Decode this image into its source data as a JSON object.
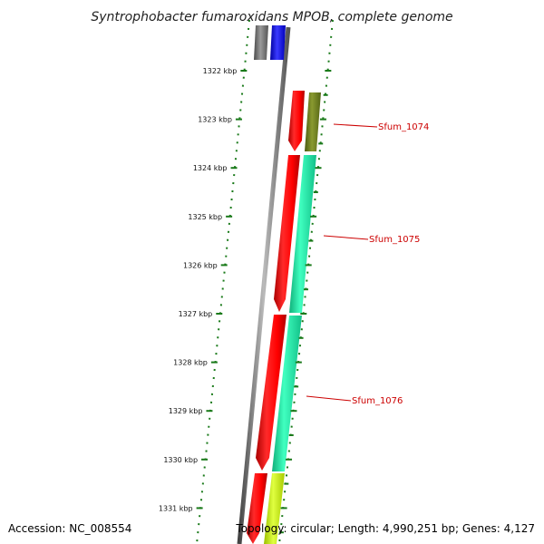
{
  "title": "Syntrophobacter fumaroxidans MPOB, complete genome",
  "footer": {
    "accession": "Accession: NC_008554",
    "summary": "Topology: circular; Length: 4,990,251 bp; Genes: 4,127"
  },
  "scale": {
    "ticks": [
      "1322 kbp",
      "1323 kbp",
      "1324 kbp",
      "1325 kbp",
      "1326 kbp",
      "1327 kbp",
      "1328 kbp",
      "1329 kbp",
      "1330 kbp",
      "1331 kbp"
    ]
  },
  "genes": [
    {
      "name": "Sfum_1074"
    },
    {
      "name": "Sfum_1075"
    },
    {
      "name": "Sfum_1076"
    }
  ],
  "colors": {
    "cds_red": "#ff0000",
    "gene_dark_olive": "#6b7a1a",
    "gene_teal": "#22f0a8",
    "gene_lime": "#c8f000",
    "gene_gray": "#6e6e6e",
    "gene_blue": "#0000ee",
    "backbone": "#777777",
    "tick_green": "#1a7a1a",
    "label_red": "#cc0000"
  }
}
